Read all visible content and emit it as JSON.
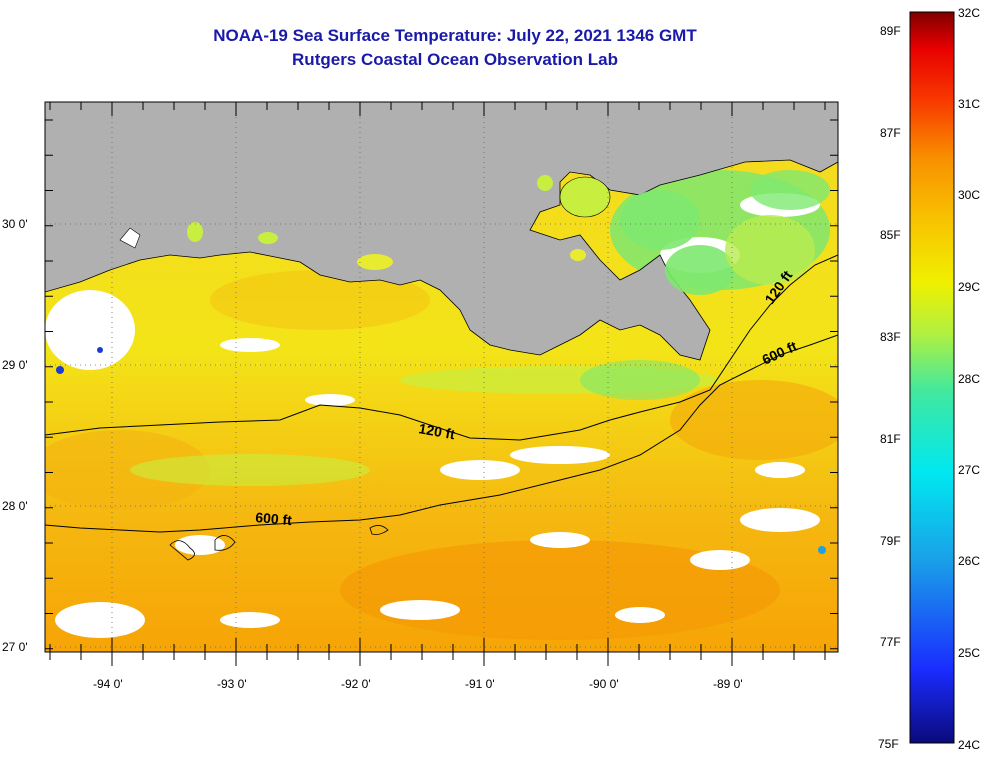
{
  "title": "NOAA-19 Sea Surface Temperature:  July 22, 2021 1346 GMT",
  "subtitle": "Rutgers Coastal Ocean Observation Lab",
  "lon_labels": [
    "-94 0'",
    "-93 0'",
    "-92 0'",
    "-91 0'",
    "-90 0'",
    "-89 0'"
  ],
  "lat_labels": [
    "30 0'",
    "29 0'",
    "28 0'",
    "27 0'"
  ],
  "contours": {
    "c120_west": "120 ft",
    "c600_west": "600 ft",
    "c120_east": "120 ft",
    "c600_east": "600 ft"
  },
  "colorbar": {
    "celsius_labels": [
      "32C",
      "31C",
      "30C",
      "29C",
      "28C",
      "27C",
      "26C",
      "25C",
      "24C"
    ],
    "fahrenheit_labels": [
      "89F",
      "87F",
      "85F",
      "83F",
      "81F",
      "79F",
      "77F",
      "75F"
    ]
  },
  "colors": {
    "title": "#1a1aa8",
    "land": "#b0b0b0",
    "cloud": "#ffffff",
    "sst_warm": "#f5a800",
    "sst_mid": "#f6ec10",
    "sst_cool": "#6fe66a"
  }
}
